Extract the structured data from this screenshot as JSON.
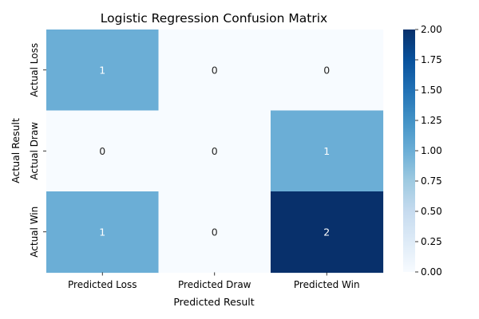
{
  "chart_data": {
    "type": "heatmap",
    "title": "Logistic Regression Confusion Matrix",
    "xlabel": "Predicted Result",
    "ylabel": "Actual Result",
    "columns": [
      "Predicted Loss",
      "Predicted Draw",
      "Predicted Win"
    ],
    "rows": [
      "Actual Loss",
      "Actual Draw",
      "Actual Win"
    ],
    "values": [
      [
        1,
        0,
        0
      ],
      [
        0,
        0,
        1
      ],
      [
        1,
        0,
        2
      ]
    ],
    "colorbar": {
      "min": 0,
      "max": 2,
      "ticks": [
        "0.00",
        "0.25",
        "0.50",
        "0.75",
        "1.00",
        "1.25",
        "1.50",
        "1.75",
        "2.00"
      ]
    },
    "colormap": "Blues",
    "colors": {
      "low": "#f7fbff",
      "mid": "#6baed6",
      "high": "#08306b"
    }
  }
}
